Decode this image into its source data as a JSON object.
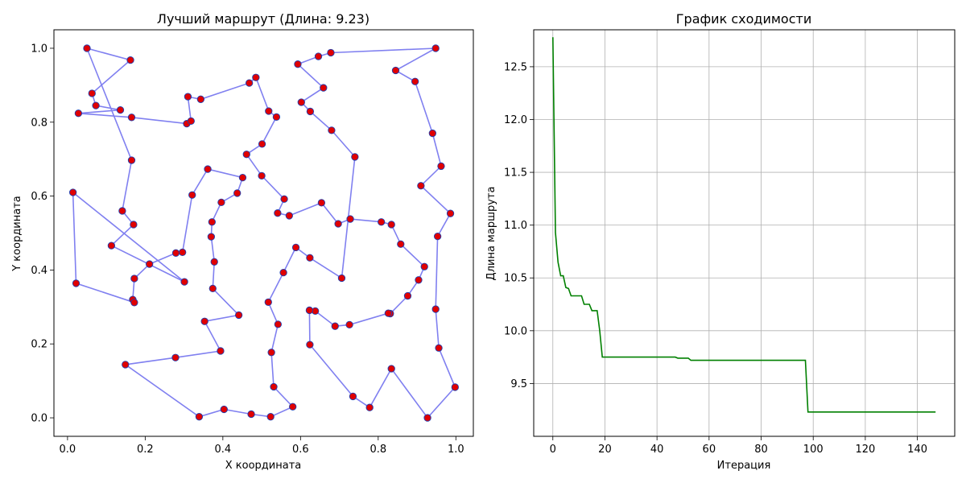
{
  "chart_data": [
    {
      "type": "scatter",
      "title": "Лучший маршрут (Длина: 9.23)",
      "xlabel": "X координата",
      "ylabel": "Y координата",
      "xlim": [
        -0.035,
        1.045
      ],
      "ylim": [
        -0.05,
        1.05
      ],
      "xticks": [
        0.0,
        0.2,
        0.4,
        0.6,
        0.8,
        1.0
      ],
      "yticks": [
        0.0,
        0.2,
        0.4,
        0.6,
        0.8,
        1.0
      ],
      "tick_format": 1,
      "grid": false,
      "route_color": "#8080f0",
      "point_fill": "#e00000",
      "point_edge": "#1f3fb0",
      "route": [
        [
          0.05,
          1.0
        ],
        [
          0.162,
          0.968
        ],
        [
          0.063,
          0.878
        ],
        [
          0.073,
          0.845
        ],
        [
          0.136,
          0.833
        ],
        [
          0.028,
          0.824
        ],
        [
          0.165,
          0.813
        ],
        [
          0.307,
          0.796
        ],
        [
          0.318,
          0.803
        ],
        [
          0.31,
          0.869
        ],
        [
          0.343,
          0.862
        ],
        [
          0.468,
          0.906
        ],
        [
          0.485,
          0.921
        ],
        [
          0.518,
          0.83
        ],
        [
          0.538,
          0.814
        ],
        [
          0.501,
          0.741
        ],
        [
          0.461,
          0.713
        ],
        [
          0.5,
          0.655
        ],
        [
          0.558,
          0.592
        ],
        [
          0.541,
          0.554
        ],
        [
          0.571,
          0.547
        ],
        [
          0.654,
          0.582
        ],
        [
          0.697,
          0.525
        ],
        [
          0.728,
          0.538
        ],
        [
          0.808,
          0.53
        ],
        [
          0.834,
          0.523
        ],
        [
          0.858,
          0.47
        ],
        [
          0.919,
          0.409
        ],
        [
          0.904,
          0.373
        ],
        [
          0.876,
          0.33
        ],
        [
          0.831,
          0.282
        ],
        [
          0.826,
          0.283
        ],
        [
          0.726,
          0.252
        ],
        [
          0.689,
          0.248
        ],
        [
          0.638,
          0.289
        ],
        [
          0.623,
          0.291
        ],
        [
          0.624,
          0.198
        ],
        [
          0.735,
          0.058
        ],
        [
          0.778,
          0.028
        ],
        [
          0.834,
          0.133
        ],
        [
          0.927,
          0.0
        ],
        [
          0.998,
          0.083
        ],
        [
          0.956,
          0.189
        ],
        [
          0.948,
          0.294
        ],
        [
          0.953,
          0.491
        ],
        [
          0.986,
          0.553
        ],
        [
          0.91,
          0.628
        ],
        [
          0.962,
          0.681
        ],
        [
          0.94,
          0.77
        ],
        [
          0.895,
          0.91
        ],
        [
          0.845,
          0.94
        ],
        [
          0.948,
          1.0
        ],
        [
          0.678,
          0.988
        ],
        [
          0.646,
          0.978
        ],
        [
          0.593,
          0.957
        ],
        [
          0.659,
          0.893
        ],
        [
          0.602,
          0.854
        ],
        [
          0.625,
          0.829
        ],
        [
          0.68,
          0.778
        ],
        [
          0.74,
          0.706
        ],
        [
          0.706,
          0.378
        ],
        [
          0.624,
          0.433
        ],
        [
          0.588,
          0.461
        ],
        [
          0.556,
          0.393
        ],
        [
          0.517,
          0.313
        ],
        [
          0.542,
          0.253
        ],
        [
          0.525,
          0.177
        ],
        [
          0.531,
          0.084
        ],
        [
          0.58,
          0.03
        ],
        [
          0.523,
          0.003
        ],
        [
          0.473,
          0.01
        ],
        [
          0.403,
          0.023
        ],
        [
          0.339,
          0.003
        ],
        [
          0.149,
          0.144
        ],
        [
          0.278,
          0.163
        ],
        [
          0.394,
          0.181
        ],
        [
          0.353,
          0.261
        ],
        [
          0.441,
          0.278
        ],
        [
          0.374,
          0.35
        ],
        [
          0.378,
          0.422
        ],
        [
          0.37,
          0.49
        ],
        [
          0.372,
          0.53
        ],
        [
          0.396,
          0.583
        ],
        [
          0.437,
          0.608
        ],
        [
          0.451,
          0.65
        ],
        [
          0.361,
          0.673
        ],
        [
          0.321,
          0.603
        ],
        [
          0.296,
          0.448
        ],
        [
          0.279,
          0.446
        ],
        [
          0.211,
          0.416
        ],
        [
          0.172,
          0.377
        ],
        [
          0.168,
          0.32
        ],
        [
          0.172,
          0.312
        ],
        [
          0.022,
          0.364
        ],
        [
          0.014,
          0.61
        ],
        [
          0.301,
          0.368
        ],
        [
          0.113,
          0.466
        ],
        [
          0.17,
          0.523
        ],
        [
          0.141,
          0.56
        ],
        [
          0.165,
          0.697
        ],
        [
          0.05,
          1.0
        ]
      ]
    },
    {
      "type": "line",
      "title": "График сходимости",
      "xlabel": "Итерация",
      "ylabel": "Длина маршрута",
      "xlim": [
        -7.35,
        154.35
      ],
      "ylim": [
        9.0,
        12.85
      ],
      "xticks": [
        0,
        20,
        40,
        60,
        80,
        100,
        120,
        140
      ],
      "yticks": [
        9.5,
        10.0,
        10.5,
        11.0,
        11.5,
        12.0,
        12.5
      ],
      "tick_format": 1,
      "grid": true,
      "color": "#008000",
      "x": [
        0,
        1,
        2,
        3,
        4,
        5,
        6,
        7,
        8,
        9,
        10,
        11,
        12,
        13,
        14,
        15,
        16,
        17,
        18,
        19,
        20,
        47,
        48,
        52,
        53,
        97,
        98,
        147
      ],
      "y": [
        12.78,
        10.93,
        10.65,
        10.52,
        10.52,
        10.41,
        10.4,
        10.33,
        10.33,
        10.33,
        10.33,
        10.33,
        10.25,
        10.25,
        10.25,
        10.19,
        10.19,
        10.19,
        10.0,
        9.75,
        9.75,
        9.75,
        9.74,
        9.74,
        9.72,
        9.72,
        9.23,
        9.23
      ]
    }
  ]
}
